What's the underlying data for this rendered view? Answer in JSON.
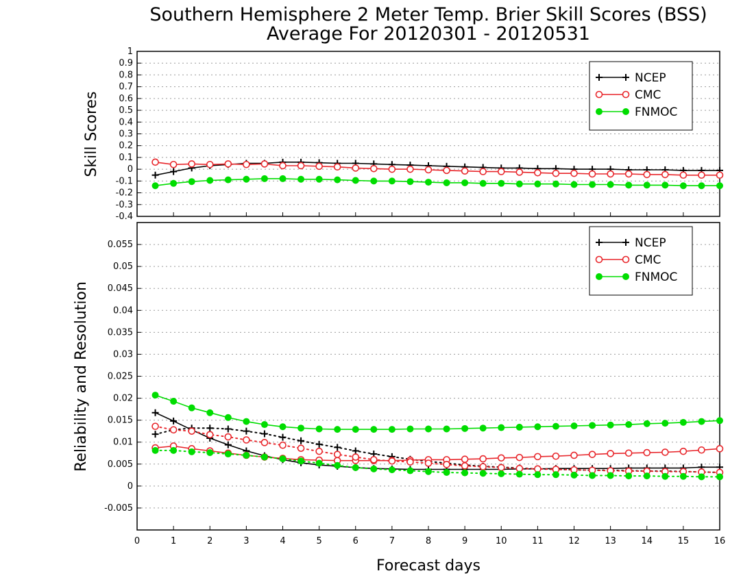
{
  "title_line1": "Southern Hemisphere 2 Meter Temp. Brier Skill Scores (BSS)",
  "title_line2": "Average For 20120301 - 20120531",
  "xlabel": "Forecast days",
  "colors": {
    "NCEP": "#000000",
    "CMC": "#e8262b",
    "FNMOC": "#00dd00",
    "grid": "#9a9a9a"
  },
  "chart_data": [
    {
      "type": "line",
      "panel": "top",
      "ylabel": "Skill Scores",
      "xlim": [
        0,
        16
      ],
      "ylim": [
        -0.4,
        1
      ],
      "x_ticks": [
        0,
        1,
        2,
        3,
        4,
        5,
        6,
        7,
        8,
        9,
        10,
        11,
        12,
        13,
        14,
        15,
        16
      ],
      "y_ticks": [
        "-0.4",
        "-0.3",
        "-0.2",
        "-0.1",
        "0",
        "0.1",
        "0.2",
        "0.3",
        "0.4",
        "0.5",
        "0.6",
        "0.7",
        "0.8",
        "0.9",
        "1"
      ],
      "grid": true,
      "legend_position": "top-right",
      "x": [
        0.5,
        1,
        1.5,
        2,
        2.5,
        3,
        3.5,
        4,
        4.5,
        5,
        5.5,
        6,
        6.5,
        7,
        7.5,
        8,
        8.5,
        9,
        9.5,
        10,
        10.5,
        11,
        11.5,
        12,
        12.5,
        13,
        13.5,
        14,
        14.5,
        15,
        15.5,
        16
      ],
      "series": [
        {
          "name": "NCEP",
          "marker": "plus",
          "style": "solid",
          "values": [
            -0.05,
            -0.02,
            0.01,
            0.03,
            0.04,
            0.05,
            0.05,
            0.06,
            0.06,
            0.055,
            0.05,
            0.05,
            0.045,
            0.04,
            0.035,
            0.03,
            0.025,
            0.02,
            0.015,
            0.01,
            0.01,
            0.005,
            0.005,
            0.0,
            0.0,
            0.0,
            -0.005,
            -0.005,
            -0.005,
            -0.01,
            -0.01,
            -0.01
          ]
        },
        {
          "name": "CMC",
          "marker": "open-circle",
          "style": "solid",
          "values": [
            0.06,
            0.04,
            0.045,
            0.04,
            0.045,
            0.04,
            0.045,
            0.03,
            0.03,
            0.025,
            0.02,
            0.01,
            0.005,
            0.0,
            0.0,
            -0.005,
            -0.01,
            -0.015,
            -0.02,
            -0.02,
            -0.025,
            -0.03,
            -0.035,
            -0.035,
            -0.04,
            -0.04,
            -0.04,
            -0.045,
            -0.045,
            -0.05,
            -0.05,
            -0.05
          ]
        },
        {
          "name": "FNMOC",
          "marker": "filled-circle",
          "style": "solid",
          "values": [
            -0.14,
            -0.12,
            -0.105,
            -0.095,
            -0.09,
            -0.085,
            -0.08,
            -0.08,
            -0.085,
            -0.085,
            -0.09,
            -0.095,
            -0.1,
            -0.1,
            -0.105,
            -0.11,
            -0.115,
            -0.115,
            -0.12,
            -0.12,
            -0.125,
            -0.125,
            -0.125,
            -0.13,
            -0.13,
            -0.13,
            -0.135,
            -0.135,
            -0.135,
            -0.14,
            -0.14,
            -0.14
          ]
        }
      ]
    },
    {
      "type": "line",
      "panel": "bottom",
      "ylabel": "Reliability and Resolution",
      "xlim": [
        0,
        16
      ],
      "ylim": [
        -0.01,
        0.06
      ],
      "x_ticks": [
        0,
        1,
        2,
        3,
        4,
        5,
        6,
        7,
        8,
        9,
        10,
        11,
        12,
        13,
        14,
        15,
        16
      ],
      "y_ticks": [
        "-0.005",
        "0",
        "0.005",
        "0.01",
        "0.015",
        "0.02",
        "0.025",
        "0.03",
        "0.035",
        "0.04",
        "0.045",
        "0.05",
        "0.055"
      ],
      "grid": true,
      "legend_position": "top-right",
      "x": [
        0.5,
        1,
        1.5,
        2,
        2.5,
        3,
        3.5,
        4,
        4.5,
        5,
        5.5,
        6,
        6.5,
        7,
        7.5,
        8,
        8.5,
        9,
        9.5,
        10,
        10.5,
        11,
        11.5,
        12,
        12.5,
        13,
        13.5,
        14,
        14.5,
        15,
        15.5,
        16
      ],
      "series": [
        {
          "name": "NCEP",
          "marker": "plus",
          "style": "solid",
          "values": [
            0.0167,
            0.0148,
            0.0128,
            0.0109,
            0.0094,
            0.008,
            0.0069,
            0.006,
            0.0053,
            0.0048,
            0.0045,
            0.0042,
            0.004,
            0.0039,
            0.0038,
            0.0038,
            0.0038,
            0.0038,
            0.0038,
            0.0038,
            0.0039,
            0.0039,
            0.004,
            0.004,
            0.004,
            0.004,
            0.0041,
            0.0041,
            0.0041,
            0.0041,
            0.0043,
            0.0043
          ]
        },
        {
          "name": "NCEP",
          "marker": "plus",
          "style": "dotted",
          "values": [
            0.0118,
            0.0128,
            0.0132,
            0.0132,
            0.013,
            0.0125,
            0.0119,
            0.0111,
            0.0103,
            0.0095,
            0.0088,
            0.008,
            0.0073,
            0.0067,
            0.0061,
            0.0056,
            0.0052,
            0.0048,
            0.0045,
            0.0043,
            0.0041,
            0.0039,
            0.0038,
            0.0037,
            0.0036,
            0.0036,
            0.0035,
            0.0034,
            0.0034,
            0.0033,
            0.0032,
            0.0031
          ]
        },
        {
          "name": "CMC",
          "marker": "open-circle",
          "style": "solid",
          "values": [
            0.0087,
            0.0091,
            0.0085,
            0.008,
            0.0075,
            0.007,
            0.0066,
            0.0063,
            0.006,
            0.0059,
            0.0058,
            0.0058,
            0.0058,
            0.0058,
            0.0059,
            0.006,
            0.006,
            0.0061,
            0.0062,
            0.0064,
            0.0065,
            0.0067,
            0.0068,
            0.007,
            0.0072,
            0.0074,
            0.0075,
            0.0076,
            0.0077,
            0.0079,
            0.0082,
            0.0085
          ]
        },
        {
          "name": "CMC",
          "marker": "open-circle",
          "style": "dotted",
          "values": [
            0.0136,
            0.0128,
            0.0125,
            0.0117,
            0.0112,
            0.0105,
            0.0099,
            0.0093,
            0.0086,
            0.0079,
            0.0072,
            0.0066,
            0.006,
            0.0057,
            0.0055,
            0.0052,
            0.0049,
            0.0046,
            0.0044,
            0.0042,
            0.004,
            0.0039,
            0.0038,
            0.0037,
            0.0036,
            0.0035,
            0.0034,
            0.0034,
            0.0033,
            0.0033,
            0.0032,
            0.0031
          ]
        },
        {
          "name": "FNMOC",
          "marker": "filled-circle",
          "style": "solid",
          "values": [
            0.0207,
            0.0193,
            0.0178,
            0.0167,
            0.0156,
            0.0147,
            0.014,
            0.0135,
            0.0132,
            0.013,
            0.0129,
            0.0129,
            0.0129,
            0.0129,
            0.013,
            0.013,
            0.013,
            0.0131,
            0.0132,
            0.0133,
            0.0134,
            0.0135,
            0.0136,
            0.0137,
            0.0138,
            0.0139,
            0.014,
            0.0142,
            0.0143,
            0.0145,
            0.0147,
            0.0149
          ]
        },
        {
          "name": "FNMOC",
          "marker": "filled-circle",
          "style": "dotted",
          "values": [
            0.0081,
            0.0081,
            0.0078,
            0.0076,
            0.0073,
            0.007,
            0.0066,
            0.0062,
            0.0057,
            0.0052,
            0.0047,
            0.0042,
            0.0039,
            0.0037,
            0.0035,
            0.0033,
            0.0031,
            0.003,
            0.0029,
            0.0028,
            0.0027,
            0.0026,
            0.0026,
            0.0025,
            0.0024,
            0.0024,
            0.0023,
            0.0023,
            0.0022,
            0.0022,
            0.0021,
            0.0021
          ]
        }
      ]
    }
  ]
}
